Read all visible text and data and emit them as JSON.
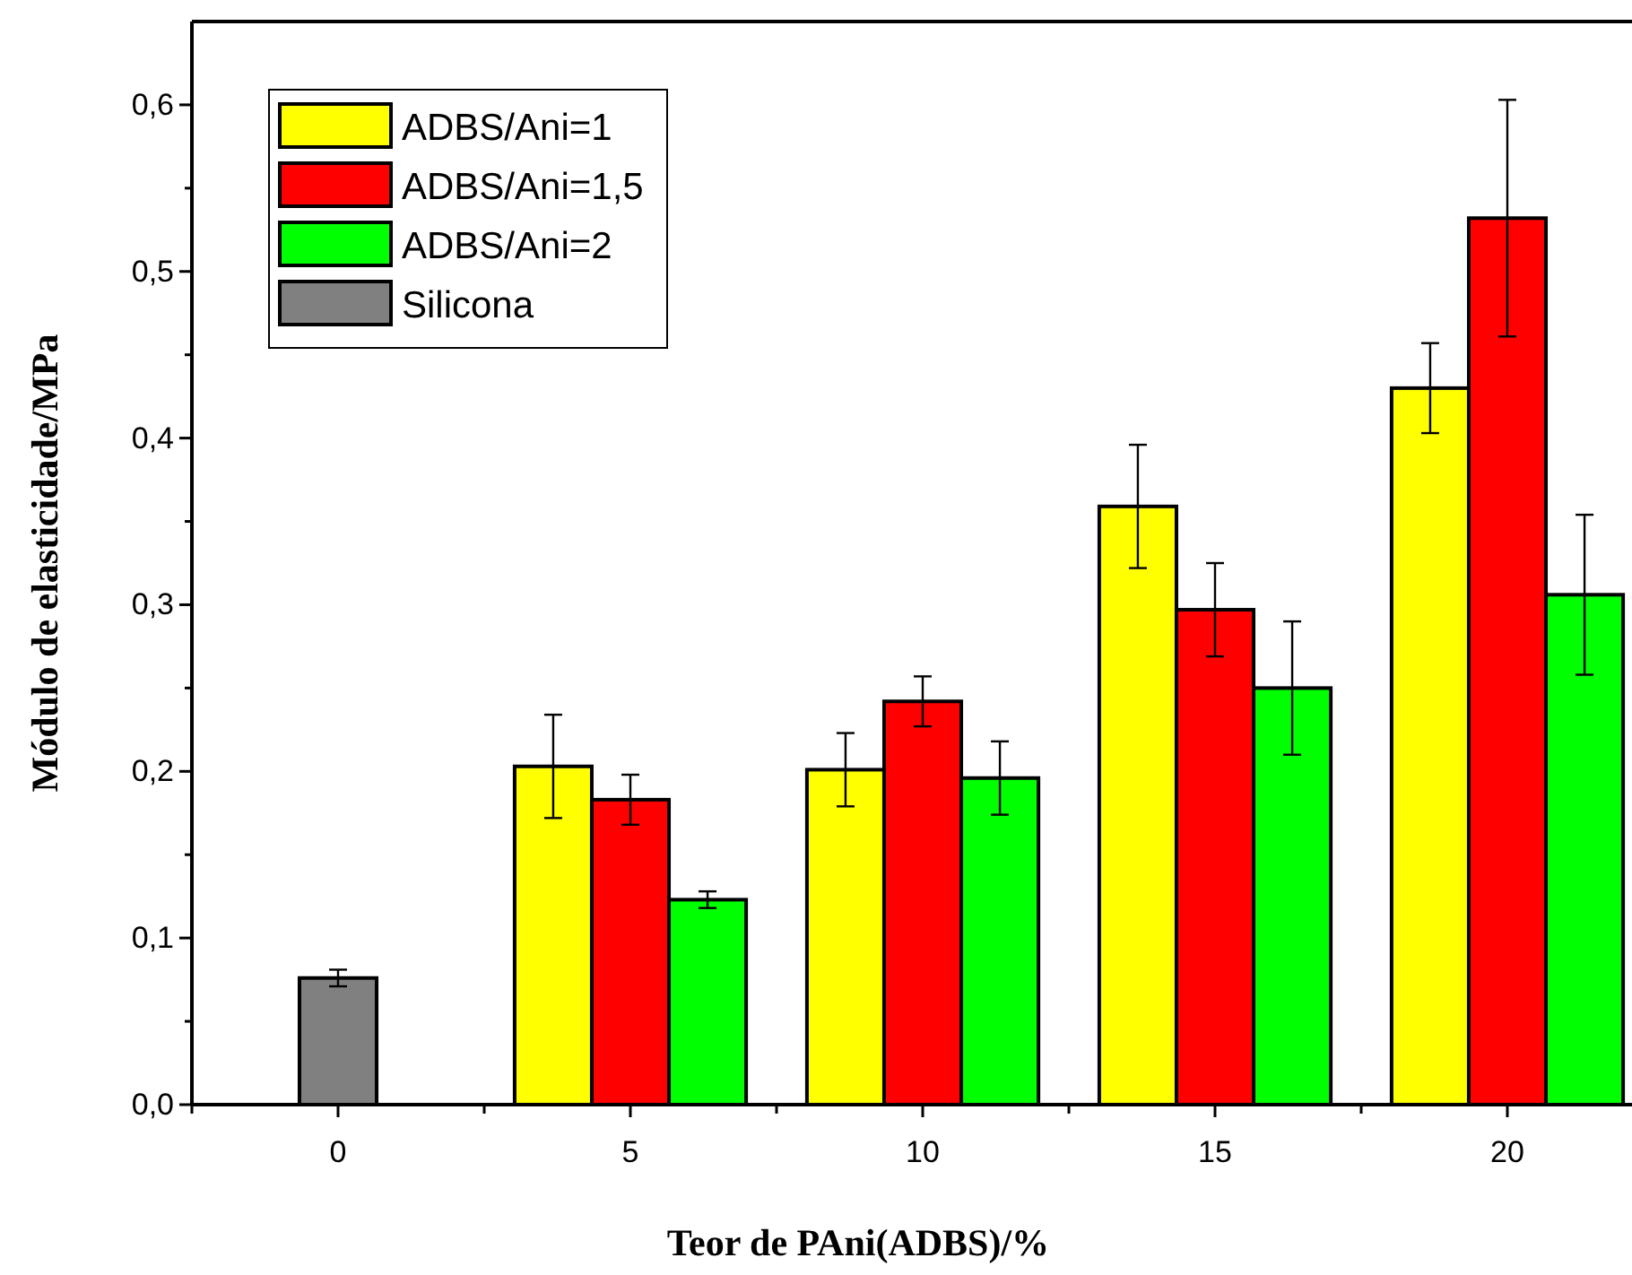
{
  "chart_data": {
    "type": "bar",
    "xlabel": "Teor de PAni(ADBS)/%",
    "ylabel": "Módulo de elasticidade/MPa",
    "categories": [
      "0",
      "5",
      "10",
      "15",
      "20"
    ],
    "series": [
      {
        "name": "ADBS/Ani=1",
        "color": "#ffff00",
        "values": [
          null,
          0.203,
          0.201,
          0.359,
          0.43
        ],
        "errors": [
          null,
          0.031,
          0.022,
          0.037,
          0.027
        ]
      },
      {
        "name": "ADBS/Ani=1,5",
        "color": "#ff0000",
        "values": [
          null,
          0.183,
          0.242,
          0.297,
          0.532
        ],
        "errors": [
          null,
          0.015,
          0.015,
          0.028,
          0.071
        ]
      },
      {
        "name": "ADBS/Ani=2",
        "color": "#00ff00",
        "values": [
          null,
          0.123,
          0.196,
          0.25,
          0.306
        ],
        "errors": [
          null,
          0.005,
          0.022,
          0.04,
          0.048
        ]
      },
      {
        "name": "Silicona",
        "color": "#808080",
        "values": [
          0.076,
          null,
          null,
          null,
          null
        ],
        "errors": [
          0.005,
          null,
          null,
          null,
          null
        ]
      }
    ],
    "ylim": [
      0,
      0.65
    ],
    "yticks": [
      {
        "value": 0,
        "label": "0,0"
      },
      {
        "value": 0.05,
        "label": null
      },
      {
        "value": 0.1,
        "label": "0,1"
      },
      {
        "value": 0.15,
        "label": null
      },
      {
        "value": 0.2,
        "label": "0,2"
      },
      {
        "value": 0.25,
        "label": null
      },
      {
        "value": 0.3,
        "label": "0,3"
      },
      {
        "value": 0.35,
        "label": null
      },
      {
        "value": 0.4,
        "label": "0,4"
      },
      {
        "value": 0.45,
        "label": null
      },
      {
        "value": 0.5,
        "label": "0,5"
      },
      {
        "value": 0.55,
        "label": null
      },
      {
        "value": 0.6,
        "label": "0,6"
      }
    ],
    "grid": false,
    "legend": "top left"
  }
}
